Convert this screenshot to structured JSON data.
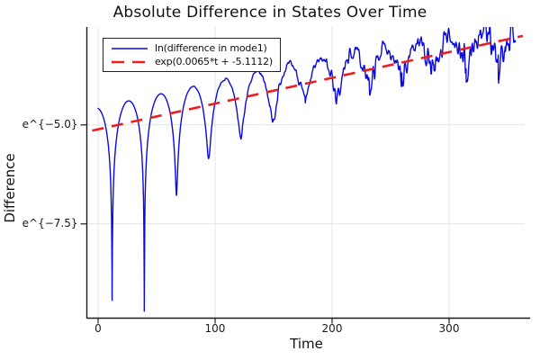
{
  "title": "Absolute Difference in States Over Time",
  "colors": {
    "series_blue": "#0a0ae0",
    "series_red": "#ee1c1c",
    "grid": "#e4e4e4",
    "axis": "#1a1a1a",
    "text": "#111111",
    "background": "#ffffff"
  },
  "legend": {
    "entries": [
      {
        "label": "ln(difference in mode1)",
        "color": "#0a0ae0",
        "style": "solid"
      },
      {
        "label": "exp(0.0065*t + -5.1112)",
        "color": "#ee1c1c",
        "style": "dashed"
      }
    ]
  },
  "chart_data": {
    "type": "line",
    "title": "Absolute Difference in States Over Time",
    "xlabel": "Time",
    "ylabel": "Difference",
    "x_range": [
      -9.6,
      364.6
    ],
    "y_range": [
      -9.88,
      -2.527
    ],
    "y_scale": "ln",
    "grid": true,
    "legend_position": "top-left",
    "x_ticks": {
      "values": [
        0,
        100,
        200,
        300
      ],
      "labels": [
        "0",
        "100",
        "200",
        "300"
      ]
    },
    "y_ticks": [
      {
        "value": -5.0,
        "label": "e^{−5.0}"
      },
      {
        "value": -7.5,
        "label": "e^{−7.5}"
      }
    ],
    "series": [
      {
        "name": "ln(difference in mode1)",
        "color": "#0a0ae0",
        "style": "solid",
        "width": 1.4,
        "model": {
          "type": "ln_abs_growing_oscillation",
          "description": "ln(|difference|) = slope*t + intercept + peak_excess(t) + ln(sqrt(sin^2(pi*(t-first_zero)/period) + floor_k^2)) + noise",
          "slope": 0.0065,
          "intercept": -5.1112,
          "peak_excess_base": 0.55,
          "peak_excess_cubic": 0.45,
          "period": 27.5,
          "first_zero": 12,
          "t_start": 0,
          "t_end": 357,
          "sample_dt": 0.35,
          "dip_depths": [
            4.95,
            5.4,
            2.65,
            1.9,
            1.55,
            1.3,
            0.95,
            1.0,
            0.85,
            0.9,
            0.85,
            0.85,
            0.8,
            0.8
          ],
          "noise": {
            "seed": 7,
            "max_amp": 0.3,
            "onset_t": 60,
            "power": 1.4,
            "dip_boost": 0.8
          }
        }
      },
      {
        "name": "exp(0.0065*t + -5.1112)",
        "color": "#ee1c1c",
        "style": "dashed",
        "width": 2.6,
        "dash": [
          13,
          9
        ],
        "model": {
          "type": "linear_in_log",
          "slope": 0.0065,
          "intercept": -5.1112,
          "t_start": -5,
          "t_end": 363
        }
      }
    ]
  }
}
